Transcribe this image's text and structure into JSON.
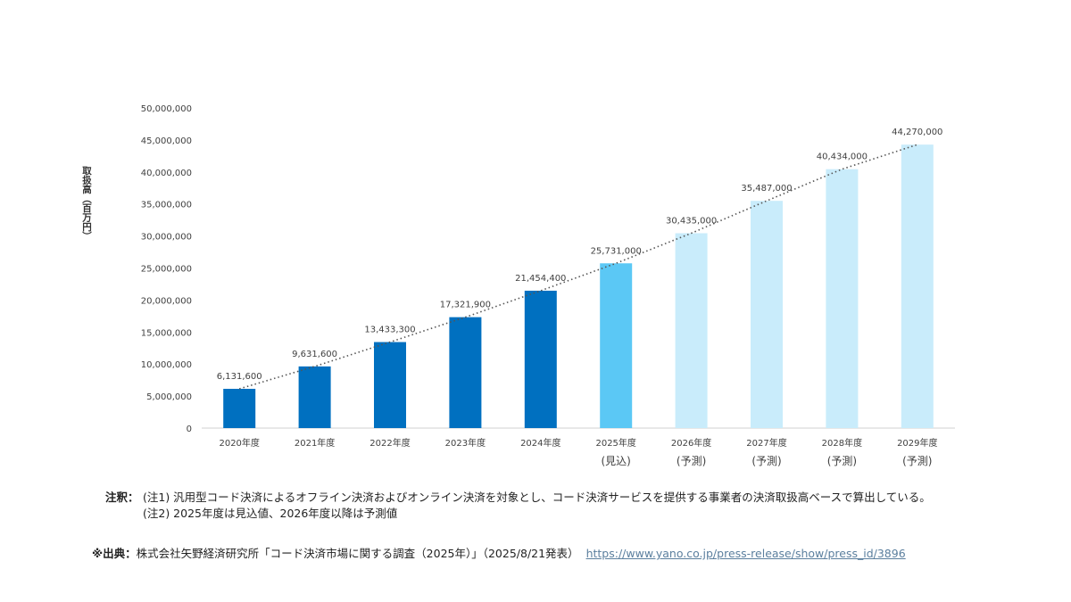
{
  "chart_data": {
    "type": "bar",
    "ylabel": "取扱高（百万円）",
    "ylim": [
      0,
      50000000
    ],
    "yticks": [
      "0",
      "5,000,000",
      "10,000,000",
      "15,000,000",
      "20,000,000",
      "25,000,000",
      "30,000,000",
      "35,000,000",
      "40,000,000",
      "45,000,000",
      "50,000,000"
    ],
    "categories": [
      "2020年度",
      "2021年度",
      "2022年度",
      "2023年度",
      "2024年度",
      "2025年度",
      "2026年度",
      "2027年度",
      "2028年度",
      "2029年度"
    ],
    "sublabels": [
      "",
      "",
      "",
      "",
      "",
      "(見込)",
      "(予測)",
      "(予測)",
      "(予測)",
      "(予測)"
    ],
    "values": [
      6131600,
      9631600,
      13433300,
      17321900,
      21454400,
      25731000,
      30435000,
      35487000,
      40434000,
      44270000
    ],
    "value_labels": [
      "6,131,600",
      "9,631,600",
      "13,433,300",
      "17,321,900",
      "21,454,400",
      "25,731,000",
      "30,435,000",
      "35,487,000",
      "40,434,000",
      "44,270,000"
    ],
    "bar_status": [
      "actual",
      "actual",
      "actual",
      "actual",
      "actual",
      "estimate",
      "forecast",
      "forecast",
      "forecast",
      "forecast"
    ],
    "colors": {
      "actual": "#0070c0",
      "estimate": "#5bc8f5",
      "forecast": "#c9ecfb",
      "trend": "#555555"
    },
    "trendline": "dotted"
  },
  "notes": {
    "label": "注釈：",
    "line1": "(注1) 汎用型コード決済によるオフライン決済およびオンライン決済を対象とし、コード決済サービスを提供する事業者の決済取扱高ベースで算出している。",
    "line2": "(注2) 2025年度は見込値、2026年度以降は予測値"
  },
  "source": {
    "label": "※出典：",
    "text": "株式会社矢野経済研究所「コード決済市場に関する調査（2025年）」（2025/8/21発表）",
    "link": "https://www.yano.co.jp/press-release/show/press_id/3896"
  }
}
